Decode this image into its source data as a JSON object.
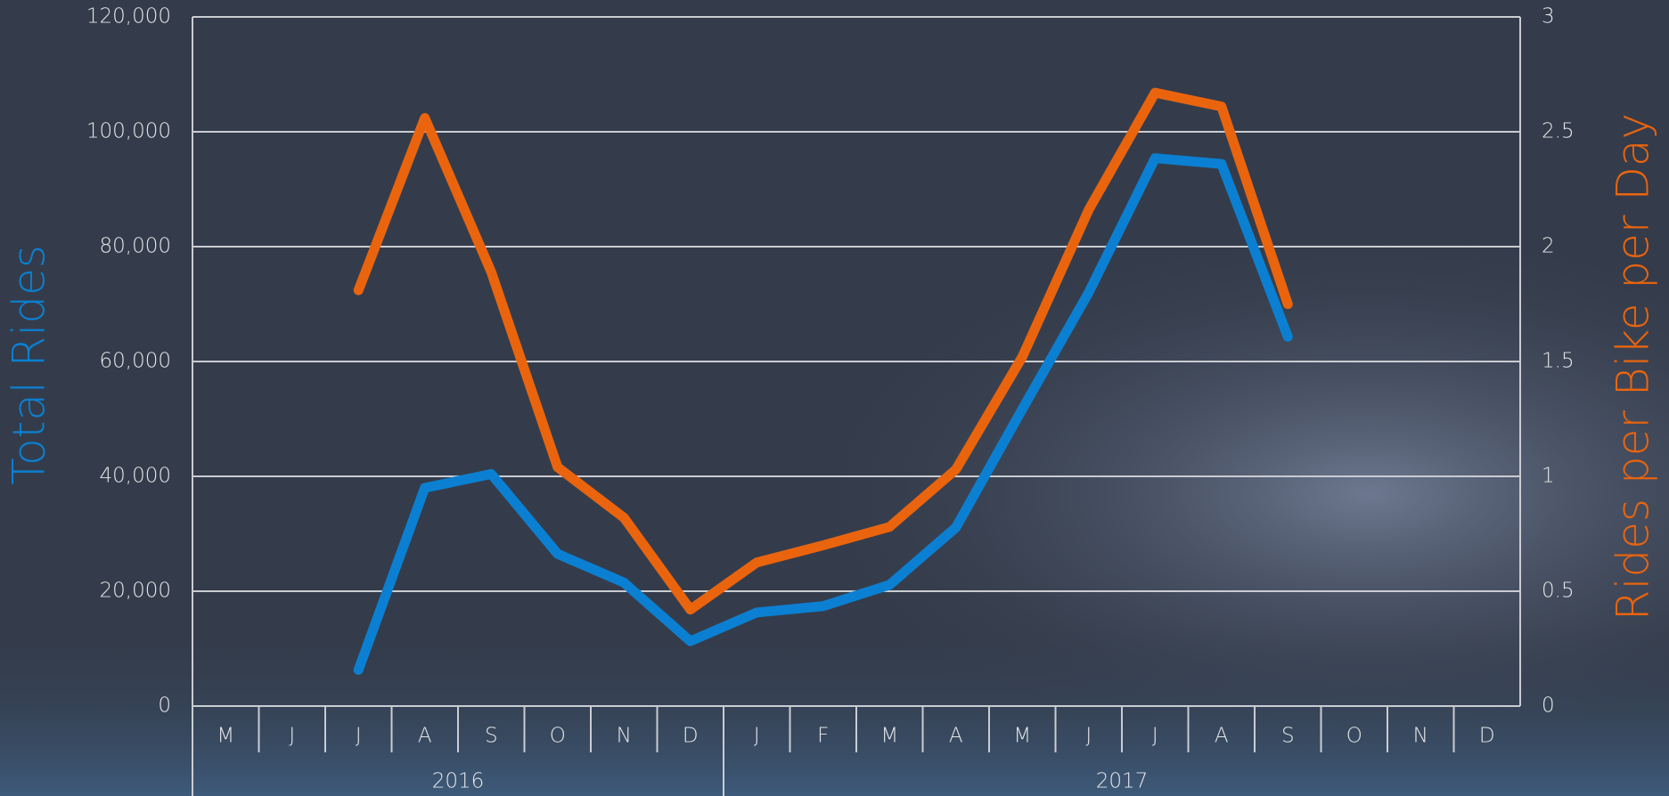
{
  "chart_data": {
    "type": "line",
    "categories": [
      "M",
      "J",
      "J",
      "A",
      "S",
      "O",
      "N",
      "D",
      "J",
      "F",
      "M",
      "A",
      "M",
      "J",
      "J",
      "A",
      "S",
      "O",
      "N",
      "D"
    ],
    "year_labels": [
      "2016",
      "2017"
    ],
    "y_label": "Total Rides",
    "y2_label": "Rides per Bike per Day",
    "series": [
      {
        "name": "Total Rides",
        "color": "#0b80d2",
        "axis": "y",
        "values": [
          null,
          null,
          6300,
          38000,
          40400,
          26500,
          21500,
          11300,
          16300,
          17400,
          21100,
          31100,
          51700,
          72000,
          95400,
          94400,
          64300,
          null,
          null,
          null
        ]
      },
      {
        "name": "Rides per Bike per Day",
        "color": "#ea640e",
        "axis": "y2",
        "values": [
          null,
          null,
          1.81,
          2.56,
          1.89,
          1.04,
          0.82,
          0.42,
          0.625,
          0.7,
          0.78,
          1.03,
          1.52,
          2.16,
          2.67,
          2.61,
          1.75,
          null,
          null,
          null
        ]
      }
    ],
    "ylim": [
      0,
      120000
    ],
    "yticks": [
      0,
      {
        "value": 20000,
        "label": "20,000"
      },
      {
        "value": 40000,
        "label": "40,000"
      },
      {
        "value": 60000,
        "label": "60,000"
      },
      {
        "value": 80000,
        "label": "80,000"
      },
      {
        "value": 100000,
        "label": "100,000"
      },
      {
        "value": 120000,
        "label": "120,000"
      }
    ],
    "y2lim": [
      0,
      3
    ],
    "y2ticks": [
      0,
      0.5,
      1,
      1.5,
      2,
      2.5,
      3
    ],
    "grid": true
  }
}
